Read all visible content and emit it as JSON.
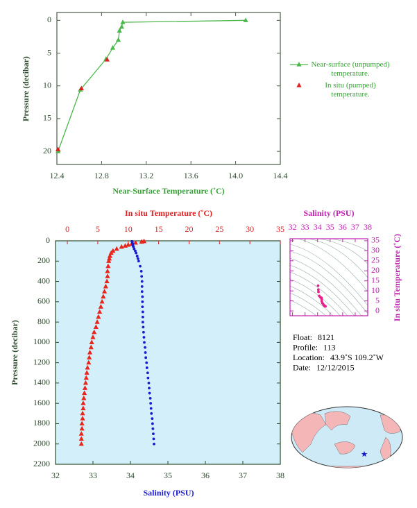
{
  "chart_data": [
    {
      "type": "line",
      "x_label": "Near-Surface Temperature (˚C)",
      "y_label": "Pressure (decibar)",
      "xlim": [
        12.4,
        14.4
      ],
      "xticks": [
        12.4,
        12.8,
        13.2,
        13.6,
        {
          "value": 14,
          "label": "14.0"
        },
        14.4
      ],
      "ylim": [
        22,
        -1.2
      ],
      "yticks": [
        0,
        5,
        10,
        15,
        20
      ],
      "series": [
        {
          "name": "Near-surface (unpumped) temperature.",
          "color": "#4cb84c",
          "marker": "triangle",
          "line": true,
          "x": [
            14.09,
            12.99,
            12.98,
            12.96,
            12.95,
            12.9,
            12.84,
            12.61,
            12.41
          ],
          "values": [
            0,
            0.3,
            1.0,
            1.6,
            3.0,
            4.2,
            5.9,
            10.6,
            20.0
          ]
        },
        {
          "name": "In situ (pumped) temperature.",
          "color": "#e02020",
          "marker": "triangle",
          "line": false,
          "x": [
            12.85,
            12.62,
            12.41
          ],
          "values": [
            6.0,
            10.4,
            19.7
          ]
        }
      ]
    },
    {
      "type": "scatter",
      "x_label": "Salinity (PSU)",
      "x2_label": "In situ Temperature (˚C)",
      "y_label": "Pressure (decibar)",
      "xlim": [
        32,
        38
      ],
      "xticks": [
        32,
        33,
        34,
        35,
        36,
        37,
        38
      ],
      "x2lim": [
        -1.95,
        35
      ],
      "x2ticks": [
        0,
        5,
        10,
        15,
        20,
        25,
        30,
        35
      ],
      "ylim": [
        2200,
        0
      ],
      "yticks": [
        0,
        200,
        400,
        600,
        800,
        1000,
        1200,
        1400,
        1600,
        1800,
        2000,
        2200
      ],
      "series": [
        {
          "color": "#e8261c",
          "marker": "triangle",
          "axis": "x2",
          "x": [
            12.6,
            12.2,
            11.2,
            10.6,
            10.0,
            9.5,
            8.9,
            8.1,
            7.5,
            7.2,
            7.0,
            6.9,
            6.8,
            6.7,
            6.6,
            6.6,
            6.5,
            6.3,
            6.1,
            5.9,
            5.7,
            5.5,
            5.3,
            5.1,
            4.9,
            4.7,
            4.4,
            4.2,
            4.0,
            3.9,
            3.7,
            3.6,
            3.5,
            3.3,
            3.2,
            3.1,
            3.0,
            2.9,
            2.8,
            2.7,
            2.6,
            2.6,
            2.5,
            2.5,
            2.4,
            2.4,
            2.3,
            2.3,
            2.3
          ],
          "values": [
            5,
            10,
            20,
            30,
            40,
            50,
            60,
            80,
            100,
            120,
            150,
            175,
            200,
            250,
            300,
            350,
            400,
            450,
            500,
            550,
            600,
            650,
            700,
            750,
            800,
            850,
            900,
            950,
            1000,
            1050,
            1100,
            1150,
            1200,
            1250,
            1300,
            1350,
            1400,
            1450,
            1500,
            1550,
            1600,
            1650,
            1700,
            1750,
            1800,
            1850,
            1900,
            1950,
            2000
          ]
        },
        {
          "color": "#1a1ad0",
          "marker": "circle",
          "axis": "x",
          "x": [
            34.04,
            34.05,
            34.05,
            34.06,
            34.06,
            34.07,
            34.08,
            34.1,
            34.13,
            34.15,
            34.18,
            34.2,
            34.22,
            34.26,
            34.29,
            34.3,
            34.31,
            34.31,
            34.31,
            34.32,
            34.32,
            34.32,
            34.33,
            34.33,
            34.33,
            34.34,
            34.35,
            34.36,
            34.37,
            34.39,
            34.4,
            34.41,
            34.43,
            34.44,
            34.46,
            34.47,
            34.49,
            34.5,
            34.51,
            34.53,
            34.54,
            34.55,
            34.56,
            34.58,
            34.59,
            34.6,
            34.61,
            34.62,
            34.63
          ],
          "values": [
            5,
            10,
            20,
            30,
            40,
            50,
            60,
            80,
            100,
            120,
            150,
            175,
            200,
            250,
            300,
            350,
            400,
            450,
            500,
            550,
            600,
            650,
            700,
            750,
            800,
            850,
            900,
            950,
            1000,
            1050,
            1100,
            1150,
            1200,
            1250,
            1300,
            1350,
            1400,
            1450,
            1500,
            1550,
            1600,
            1650,
            1700,
            1750,
            1800,
            1850,
            1900,
            1950,
            2000
          ]
        }
      ]
    },
    {
      "type": "scatter",
      "x_label": "Salinity (PSU)",
      "y_label": "In situ Temperature (˚C)",
      "xlim": [
        31.8,
        38
      ],
      "xticks": [
        32,
        33,
        34,
        35,
        36,
        37,
        38
      ],
      "ylim": [
        -2.4,
        36
      ],
      "yticks": [
        0,
        5,
        10,
        15,
        20,
        25,
        30,
        35
      ],
      "series": [
        {
          "color": "#e8208a",
          "marker": "circle",
          "x": [
            34.04,
            34.06,
            34.07,
            34.13,
            34.22,
            34.29,
            34.31,
            34.32,
            34.33,
            34.37,
            34.43,
            34.49,
            34.54,
            34.59,
            34.63
          ],
          "values": [
            12.6,
            10.6,
            9.5,
            7.5,
            6.8,
            6.6,
            6.5,
            5.9,
            4.9,
            4.0,
            3.5,
            3.0,
            2.6,
            2.4,
            2.3
          ]
        }
      ]
    }
  ],
  "info": [
    {
      "label": "Float:",
      "value": "8121"
    },
    {
      "label": "Profile:",
      "value": "113"
    },
    {
      "label": "Location:",
      "value": "43.9˚S  109.2˚W"
    },
    {
      "label": "Date:",
      "value": "12/12/2015"
    }
  ]
}
